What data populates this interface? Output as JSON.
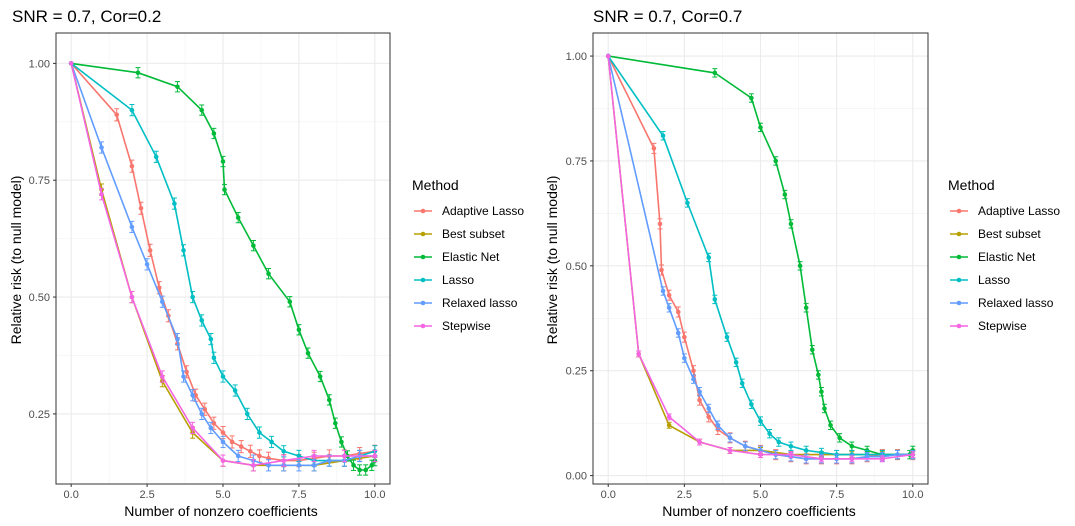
{
  "chart_data": [
    {
      "type": "line",
      "title": "SNR = 0.7, Cor=0.2",
      "xlabel": "Number of nonzero coefficients",
      "ylabel": "Relative risk (to null model)",
      "xlim": [
        -0.5,
        10.5
      ],
      "ylim": [
        0.1,
        1.065
      ],
      "xticks": [
        0,
        2.5,
        5,
        7.5,
        10
      ],
      "xtick_labels": [
        "0.0",
        "2.5",
        "5.0",
        "7.5",
        "10.0"
      ],
      "yticks": [
        0.25,
        0.5,
        0.75,
        1.0
      ],
      "ytick_labels": [
        "0.25",
        "0.50",
        "0.75",
        "1.00"
      ],
      "grid": true,
      "legend": "right",
      "series": [
        {
          "name": "Adaptive Lasso",
          "x": [
            0,
            1.5,
            2,
            2.3,
            2.6,
            2.9,
            3.2,
            3.5,
            3.8,
            4.1,
            4.4,
            4.7,
            5,
            5.3,
            5.6,
            5.9,
            6.2,
            6.5,
            7,
            7.5,
            8,
            8.5,
            9,
            9.5,
            10
          ],
          "y": [
            1,
            0.89,
            0.78,
            0.69,
            0.6,
            0.52,
            0.46,
            0.4,
            0.34,
            0.29,
            0.26,
            0.23,
            0.21,
            0.19,
            0.18,
            0.17,
            0.16,
            0.155,
            0.15,
            0.15,
            0.155,
            0.16,
            0.16,
            0.165,
            0.17
          ],
          "err": 0.013
        },
        {
          "name": "Best subset",
          "x": [
            0,
            1,
            2,
            3,
            4,
            5,
            6,
            7,
            8,
            9,
            10
          ],
          "y": [
            1,
            0.73,
            0.5,
            0.32,
            0.21,
            0.15,
            0.14,
            0.14,
            0.14,
            0.15,
            0.16
          ],
          "err": 0.012
        },
        {
          "name": "Elastic Net",
          "x": [
            0,
            2.2,
            3.5,
            4.3,
            4.7,
            5,
            5.05,
            5.5,
            6,
            6.5,
            7.2,
            7.5,
            7.8,
            8.2,
            8.5,
            8.7,
            8.9,
            9.1,
            9.3,
            9.5,
            9.7,
            9.9,
            10
          ],
          "y": [
            1,
            0.98,
            0.95,
            0.9,
            0.85,
            0.79,
            0.73,
            0.67,
            0.61,
            0.55,
            0.49,
            0.43,
            0.38,
            0.33,
            0.28,
            0.23,
            0.19,
            0.16,
            0.14,
            0.13,
            0.13,
            0.14,
            0.15
          ],
          "err": 0.011
        },
        {
          "name": "Lasso",
          "x": [
            0,
            2,
            2.8,
            3.4,
            3.7,
            4,
            4.3,
            4.6,
            4.7,
            5,
            5.4,
            5.8,
            6.2,
            6.6,
            7,
            7.5,
            8,
            8.5,
            9,
            9.5,
            10
          ],
          "y": [
            1,
            0.9,
            0.8,
            0.7,
            0.6,
            0.5,
            0.45,
            0.41,
            0.37,
            0.33,
            0.3,
            0.25,
            0.21,
            0.19,
            0.17,
            0.16,
            0.15,
            0.15,
            0.15,
            0.16,
            0.17
          ],
          "err": 0.012
        },
        {
          "name": "Relaxed lasso",
          "x": [
            0,
            1,
            2,
            2.5,
            3,
            3.5,
            3.7,
            4,
            4.3,
            4.6,
            5,
            5.5,
            6,
            6.5,
            7,
            7.5,
            8,
            8.5,
            9,
            9.5,
            10
          ],
          "y": [
            1,
            0.82,
            0.65,
            0.57,
            0.49,
            0.41,
            0.33,
            0.29,
            0.25,
            0.22,
            0.19,
            0.16,
            0.15,
            0.14,
            0.14,
            0.14,
            0.14,
            0.15,
            0.15,
            0.16,
            0.16
          ],
          "err": 0.012
        },
        {
          "name": "Stepwise",
          "x": [
            0,
            1,
            2,
            3,
            4,
            5,
            6,
            7,
            8,
            9,
            10
          ],
          "y": [
            1,
            0.72,
            0.5,
            0.33,
            0.22,
            0.15,
            0.14,
            0.15,
            0.16,
            0.16,
            0.16
          ],
          "err": 0.012
        }
      ]
    },
    {
      "type": "line",
      "title": "SNR = 0.7, Cor=0.7",
      "xlabel": "Number of nonzero coefficients",
      "ylabel": "Relative risk (to null model)",
      "xlim": [
        -0.5,
        10.5
      ],
      "ylim": [
        -0.02,
        1.055
      ],
      "xticks": [
        0,
        2.5,
        5,
        7.5,
        10
      ],
      "xtick_labels": [
        "0.0",
        "2.5",
        "5.0",
        "7.5",
        "10.0"
      ],
      "yticks": [
        0,
        0.25,
        0.5,
        0.75,
        1.0
      ],
      "ytick_labels": [
        "0.00",
        "0.25",
        "0.50",
        "0.75",
        "1.00"
      ],
      "grid": true,
      "legend": "right",
      "series": [
        {
          "name": "Adaptive Lasso",
          "x": [
            0,
            1.5,
            1.7,
            1.75,
            2,
            2.3,
            2.5,
            2.8,
            3,
            3.3,
            3.6,
            4,
            4.5,
            5,
            5.5,
            6,
            6.5,
            7,
            7.5,
            8,
            8.5,
            9,
            9.5,
            10
          ],
          "y": [
            1,
            0.78,
            0.6,
            0.49,
            0.43,
            0.39,
            0.33,
            0.25,
            0.18,
            0.14,
            0.11,
            0.09,
            0.07,
            0.06,
            0.05,
            0.045,
            0.04,
            0.04,
            0.04,
            0.04,
            0.045,
            0.05,
            0.05,
            0.05
          ],
          "err": 0.012
        },
        {
          "name": "Best subset",
          "x": [
            0,
            1,
            2,
            3,
            4,
            5,
            6,
            7,
            8,
            9,
            10
          ],
          "y": [
            1,
            0.29,
            0.12,
            0.08,
            0.06,
            0.06,
            0.05,
            0.05,
            0.05,
            0.05,
            0.05
          ],
          "err": 0.007
        },
        {
          "name": "Elastic Net",
          "x": [
            0,
            3.5,
            4.7,
            5,
            5.5,
            5.8,
            6,
            6.3,
            6.5,
            6.7,
            6.9,
            7,
            7.1,
            7.3,
            7.6,
            8,
            8.5,
            9,
            9.5,
            9.9,
            10
          ],
          "y": [
            1,
            0.96,
            0.9,
            0.83,
            0.75,
            0.67,
            0.6,
            0.5,
            0.4,
            0.3,
            0.24,
            0.2,
            0.16,
            0.12,
            0.09,
            0.07,
            0.06,
            0.05,
            0.05,
            0.05,
            0.06
          ],
          "err": 0.01
        },
        {
          "name": "Lasso",
          "x": [
            0,
            1.8,
            2.6,
            3.3,
            3.5,
            3.9,
            4.2,
            4.4,
            4.7,
            5,
            5.3,
            5.6,
            6,
            6.5,
            7,
            7.5,
            8,
            8.5,
            9,
            9.5,
            10
          ],
          "y": [
            1,
            0.81,
            0.65,
            0.52,
            0.42,
            0.33,
            0.27,
            0.22,
            0.17,
            0.13,
            0.1,
            0.08,
            0.07,
            0.06,
            0.055,
            0.05,
            0.05,
            0.05,
            0.05,
            0.05,
            0.05
          ],
          "err": 0.01
        },
        {
          "name": "Relaxed lasso",
          "x": [
            0,
            1.8,
            2,
            2.3,
            2.5,
            2.8,
            3,
            3.3,
            3.6,
            4,
            4.5,
            5,
            5.5,
            6,
            6.5,
            7,
            7.5,
            8,
            8.5,
            9,
            9.5,
            10
          ],
          "y": [
            1,
            0.44,
            0.4,
            0.34,
            0.28,
            0.23,
            0.2,
            0.16,
            0.12,
            0.09,
            0.07,
            0.06,
            0.05,
            0.045,
            0.04,
            0.04,
            0.04,
            0.04,
            0.045,
            0.045,
            0.05,
            0.05
          ],
          "err": 0.01
        },
        {
          "name": "Stepwise",
          "x": [
            0,
            1,
            2,
            3,
            4,
            5,
            6,
            7,
            8,
            9,
            10
          ],
          "y": [
            1,
            0.29,
            0.14,
            0.08,
            0.06,
            0.05,
            0.05,
            0.04,
            0.04,
            0.04,
            0.05
          ],
          "err": 0.007
        }
      ]
    }
  ],
  "legend": {
    "title": "Method",
    "items": [
      {
        "name": "Adaptive Lasso",
        "color": "#F8766D"
      },
      {
        "name": "Best subset",
        "color": "#B79F00"
      },
      {
        "name": "Elastic Net",
        "color": "#00BA38"
      },
      {
        "name": "Lasso",
        "color": "#00BFC4"
      },
      {
        "name": "Relaxed lasso",
        "color": "#619CFF"
      },
      {
        "name": "Stepwise",
        "color": "#F564E3"
      }
    ]
  },
  "style": {
    "panel_bg": "#ffffff",
    "grid_color": "#ebebeb",
    "border_color": "#333333"
  }
}
